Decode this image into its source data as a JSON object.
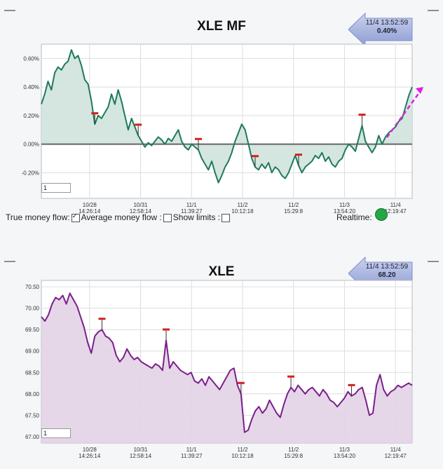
{
  "colors": {
    "mf_line": "#1f7a5a",
    "mf_fill": "#cfe3dc",
    "px_line": "#7a1f8a",
    "px_fill": "#e2d2e6",
    "marker": "#d42020",
    "trend_arrow": "#e020e0",
    "realtime_dot": "#22a845"
  },
  "mf_panel": {
    "dash_left": "—",
    "dash_right": "—",
    "title": "XLE MF",
    "badge_time": "11/4 13:52:59",
    "badge_value": "0.40%",
    "zoom_value": "1",
    "controls": {
      "true_money_flow": "True money flow:",
      "average_money_flow": "Average money flow :",
      "show_limits": "Show limits :",
      "realtime": "Realtime:"
    }
  },
  "px_panel": {
    "dash_left": "—",
    "dash_right": "—",
    "title": "XLE",
    "badge_time": "11/4 13:52:59",
    "badge_value": "68.20",
    "zoom_value": "1"
  },
  "chart_data": [
    {
      "type": "area",
      "title": "XLE MF",
      "x_ticks": [
        {
          "date": "10/28",
          "time": "14:26:14"
        },
        {
          "date": "10/31",
          "time": "12:58:14"
        },
        {
          "date": "11/1",
          "time": "11:39:27"
        },
        {
          "date": "11/2",
          "time": "10:12:18"
        },
        {
          "date": "11/2",
          "time": "15:29:8"
        },
        {
          "date": "11/3",
          "time": "13:54:20"
        },
        {
          "date": "11/4",
          "time": "12:19:47"
        }
      ],
      "y_ticks": [
        "0.60%",
        "0.40%",
        "0.20%",
        "0.00%",
        "-0.20%"
      ],
      "ylim": [
        -0.38,
        0.7
      ],
      "zero_line": 0,
      "values": [
        0.28,
        0.35,
        0.44,
        0.38,
        0.5,
        0.54,
        0.52,
        0.56,
        0.58,
        0.66,
        0.6,
        0.62,
        0.55,
        0.45,
        0.42,
        0.3,
        0.14,
        0.2,
        0.18,
        0.22,
        0.26,
        0.35,
        0.28,
        0.38,
        0.3,
        0.2,
        0.1,
        0.18,
        0.12,
        0.06,
        0.02,
        -0.02,
        0.01,
        -0.01,
        0.02,
        0.05,
        0.03,
        0.0,
        0.04,
        0.02,
        0.06,
        0.1,
        0.02,
        -0.02,
        -0.04,
        0.0,
        -0.02,
        -0.04,
        -0.1,
        -0.14,
        -0.18,
        -0.12,
        -0.2,
        -0.27,
        -0.22,
        -0.16,
        -0.12,
        -0.06,
        0.02,
        0.08,
        0.14,
        0.1,
        0.0,
        -0.1,
        -0.16,
        -0.18,
        -0.14,
        -0.17,
        -0.13,
        -0.2,
        -0.16,
        -0.18,
        -0.22,
        -0.24,
        -0.2,
        -0.14,
        -0.08,
        -0.15,
        -0.2,
        -0.16,
        -0.14,
        -0.12,
        -0.08,
        -0.1,
        -0.06,
        -0.12,
        -0.09,
        -0.14,
        -0.16,
        -0.12,
        -0.1,
        -0.04,
        0.0,
        -0.02,
        -0.05,
        0.04,
        0.13,
        0.02,
        -0.02,
        -0.06,
        -0.02,
        0.06,
        0.0,
        0.05,
        0.08,
        0.1,
        0.12,
        0.16,
        0.18,
        0.26,
        0.34,
        0.4
      ],
      "markers_index": [
        16,
        29,
        47,
        64,
        77,
        96
      ]
    },
    {
      "type": "area",
      "title": "XLE",
      "x_ticks": [
        {
          "date": "10/28",
          "time": "14:26:14"
        },
        {
          "date": "10/31",
          "time": "12:58:14"
        },
        {
          "date": "11/1",
          "time": "11:39:27"
        },
        {
          "date": "11/2",
          "time": "10:12:18"
        },
        {
          "date": "11/2",
          "time": "15:29:8"
        },
        {
          "date": "11/3",
          "time": "13:54:20"
        },
        {
          "date": "11/4",
          "time": "12:19:47"
        }
      ],
      "y_ticks": [
        "70.50",
        "70.00",
        "69.50",
        "69.00",
        "68.50",
        "68.00",
        "67.50",
        "67.00"
      ],
      "ylim": [
        66.85,
        70.65
      ],
      "values": [
        69.8,
        69.7,
        69.85,
        70.1,
        70.25,
        70.2,
        70.3,
        70.1,
        70.35,
        70.2,
        70.05,
        69.8,
        69.55,
        69.2,
        68.95,
        69.35,
        69.45,
        69.5,
        69.35,
        69.3,
        69.2,
        68.9,
        68.75,
        68.85,
        69.05,
        68.9,
        68.8,
        68.85,
        68.75,
        68.7,
        68.65,
        68.6,
        68.7,
        68.65,
        68.55,
        69.25,
        68.6,
        68.75,
        68.65,
        68.55,
        68.5,
        68.45,
        68.5,
        68.3,
        68.25,
        68.35,
        68.2,
        68.4,
        68.3,
        68.2,
        68.1,
        68.25,
        68.4,
        68.55,
        68.6,
        68.2,
        68.0,
        67.1,
        67.15,
        67.4,
        67.6,
        67.7,
        67.55,
        67.65,
        67.85,
        67.7,
        67.55,
        67.45,
        67.75,
        68.0,
        68.15,
        68.05,
        68.2,
        68.1,
        68.0,
        68.1,
        68.15,
        68.05,
        67.95,
        68.1,
        68.0,
        67.85,
        67.8,
        67.7,
        67.8,
        67.9,
        68.05,
        67.95,
        68.0,
        68.1,
        68.15,
        67.85,
        67.5,
        67.55,
        68.2,
        68.45,
        68.1,
        67.95,
        68.05,
        68.1,
        68.2,
        68.15,
        68.2,
        68.25,
        68.2
      ],
      "markers_index": [
        17,
        35,
        56,
        70,
        87
      ]
    }
  ]
}
